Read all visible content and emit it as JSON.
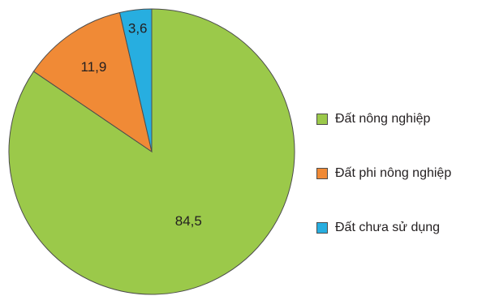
{
  "chart_data": {
    "type": "pie",
    "categories": [
      "Đất nông nghiệp",
      "Đất phi nông nghiệp",
      "Đất chưa sử dụng"
    ],
    "values": [
      84.5,
      11.9,
      3.6
    ],
    "data_labels": [
      "84,5",
      "11,9",
      "3,6"
    ],
    "colors": [
      "#9bc94a",
      "#f08a36",
      "#27aee0"
    ],
    "start": "12 o'clock, clockwise",
    "legend_position": "right"
  }
}
